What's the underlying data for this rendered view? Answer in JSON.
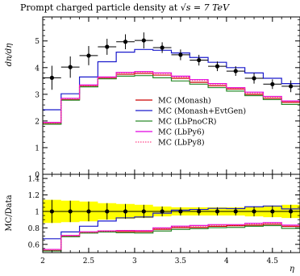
{
  "chart_data": {
    "type": "line",
    "title": "Prompt charged particle density at",
    "title_math": "√s = 7 TeV",
    "main": {
      "ylabel": "dn/dη",
      "ylim": [
        0,
        5.9
      ],
      "yticks": [
        0,
        1,
        2,
        3,
        4,
        5
      ],
      "legend_position": "center-right"
    },
    "ratio": {
      "ylabel": "MC/Data",
      "ylim": [
        0.5,
        1.45
      ],
      "yticks": [
        0.6,
        0.8,
        1,
        1.2,
        1.4
      ],
      "band_color": "#ffff00"
    },
    "xlabel": "η",
    "xlim": [
      2.0,
      4.8
    ],
    "xticks": [
      2,
      2.5,
      3,
      3.5,
      4,
      4.5
    ],
    "bin_edges": [
      2.0,
      2.2,
      2.4,
      2.6,
      2.8,
      3.0,
      3.2,
      3.4,
      3.6,
      3.8,
      4.0,
      4.2,
      4.4,
      4.6,
      4.8
    ],
    "data": {
      "x": [
        2.1,
        2.3,
        2.5,
        2.7,
        2.9,
        3.1,
        3.3,
        3.5,
        3.7,
        3.9,
        4.1,
        4.3,
        4.5,
        4.7
      ],
      "y": [
        3.62,
        4.02,
        4.45,
        4.78,
        4.97,
        5.02,
        4.75,
        4.48,
        4.28,
        4.05,
        3.87,
        3.6,
        3.38,
        3.3
      ],
      "yerr": [
        0.45,
        0.4,
        0.36,
        0.3,
        0.28,
        0.3,
        0.2,
        0.2,
        0.2,
        0.18,
        0.18,
        0.2,
        0.18,
        0.22
      ],
      "ratio_err": [
        0.14,
        0.13,
        0.12,
        0.1,
        0.09,
        0.08,
        0.06,
        0.05,
        0.05,
        0.05,
        0.05,
        0.06,
        0.07,
        0.08
      ]
    },
    "series": [
      {
        "name": "MC (Monash)",
        "color": "#cc0000",
        "style": "solid",
        "values": [
          1.9,
          2.8,
          3.3,
          3.6,
          3.75,
          3.78,
          3.72,
          3.6,
          3.45,
          3.32,
          3.2,
          3.0,
          2.85,
          2.7
        ]
      },
      {
        "name": "MC (Monash+EvtGen)",
        "color": "#1a1acc",
        "style": "solid",
        "values": [
          2.42,
          3.02,
          3.65,
          4.22,
          4.58,
          4.68,
          4.65,
          4.55,
          4.38,
          4.2,
          4.0,
          3.8,
          3.6,
          3.4
        ]
      },
      {
        "name": "MC (LbPnoCR)",
        "color": "#2a8a2a",
        "style": "solid",
        "values": [
          1.88,
          2.78,
          3.28,
          3.58,
          3.68,
          3.7,
          3.62,
          3.5,
          3.38,
          3.25,
          3.12,
          2.95,
          2.8,
          2.62
        ]
      },
      {
        "name": "MC (LbPy6)",
        "color": "#e000e0",
        "style": "solid",
        "values": [
          1.95,
          2.85,
          3.35,
          3.65,
          3.82,
          3.85,
          3.8,
          3.68,
          3.55,
          3.4,
          3.25,
          3.08,
          2.92,
          2.75
        ]
      },
      {
        "name": "MC (LbPy8)",
        "color": "#ff4488",
        "style": "dotted",
        "values": [
          1.93,
          2.83,
          3.33,
          3.63,
          3.8,
          3.83,
          3.78,
          3.65,
          3.52,
          3.38,
          3.23,
          3.05,
          2.9,
          2.73
        ]
      }
    ]
  }
}
